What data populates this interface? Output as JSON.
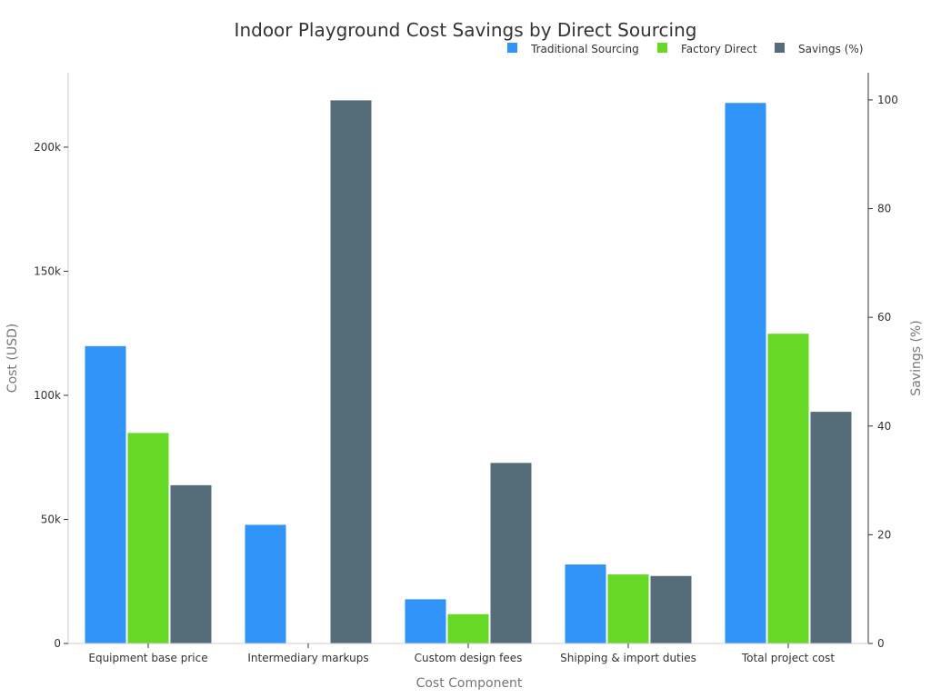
{
  "chart_data": {
    "type": "bar",
    "title": "Indoor Playground Cost Savings by Direct Sourcing",
    "xlabel": "Cost Component",
    "ylabel": "Cost (USD)",
    "y2label": "Savings (%)",
    "categories": [
      "Equipment base price",
      "Intermediary markups",
      "Custom design fees",
      "Shipping & import duties",
      "Total project cost"
    ],
    "series": [
      {
        "name": "Traditional Sourcing",
        "axis": "left",
        "color": "#2f93f7",
        "values": [
          120000,
          48000,
          18000,
          32000,
          218000
        ]
      },
      {
        "name": "Factory Direct",
        "axis": "left",
        "color": "#66d926",
        "values": [
          85000,
          0,
          12000,
          28000,
          125000
        ]
      },
      {
        "name": "Savings (%)",
        "axis": "right",
        "color": "#546d78",
        "values": [
          29.2,
          100,
          33.3,
          12.5,
          42.7
        ]
      }
    ],
    "ylim": [
      0,
      230000
    ],
    "y2lim": [
      0,
      105
    ],
    "yticks": [
      0,
      50000,
      100000,
      150000,
      200000
    ],
    "yticklabels": [
      "0",
      "50k",
      "100k",
      "150k",
      "200k"
    ],
    "y2ticks": [
      0,
      20,
      40,
      60,
      80,
      100
    ],
    "y2ticklabels": [
      "0",
      "20",
      "40",
      "60",
      "80",
      "100"
    ],
    "legend_position": "top-right",
    "grid": false
  }
}
